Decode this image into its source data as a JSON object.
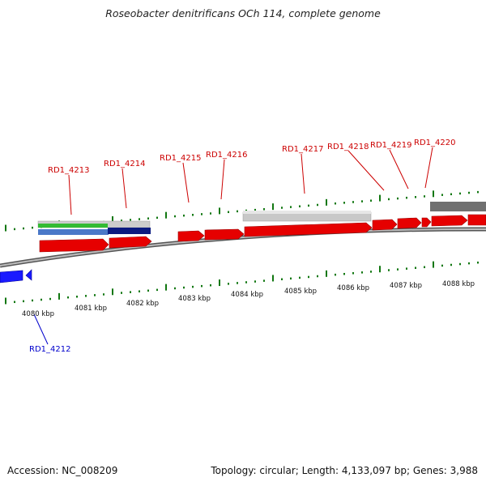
{
  "title": "Roseobacter denitrificans OCh 114, complete genome",
  "footer": {
    "accession": "Accession: NC_008209",
    "topology": "Topology: circular; Length: 4,133,097 bp; Genes: 3,988"
  },
  "colors": {
    "plus_gene": "#e60000",
    "minus_gene": "#1a1aff",
    "label_plus": "#cc0000",
    "label_minus": "#0000cc",
    "tick": "#117711",
    "backbone": "#888888"
  },
  "scale_labels": [
    "4080 kbp",
    "4081 kbp",
    "4082 kbp",
    "4083 kbp",
    "4084 kbp",
    "4085 kbp",
    "4086 kbp",
    "4087 kbp",
    "4088 kbp"
  ],
  "gene_labels": [
    {
      "text": "RD1_4213",
      "strand": "plus"
    },
    {
      "text": "RD1_4214",
      "strand": "plus"
    },
    {
      "text": "RD1_4215",
      "strand": "plus"
    },
    {
      "text": "RD1_4216",
      "strand": "plus"
    },
    {
      "text": "RD1_4217",
      "strand": "plus"
    },
    {
      "text": "RD1_4218",
      "strand": "plus"
    },
    {
      "text": "RD1_4219",
      "strand": "plus"
    },
    {
      "text": "RD1_4220",
      "strand": "plus"
    },
    {
      "text": "RD1_4212",
      "strand": "minus"
    }
  ]
}
